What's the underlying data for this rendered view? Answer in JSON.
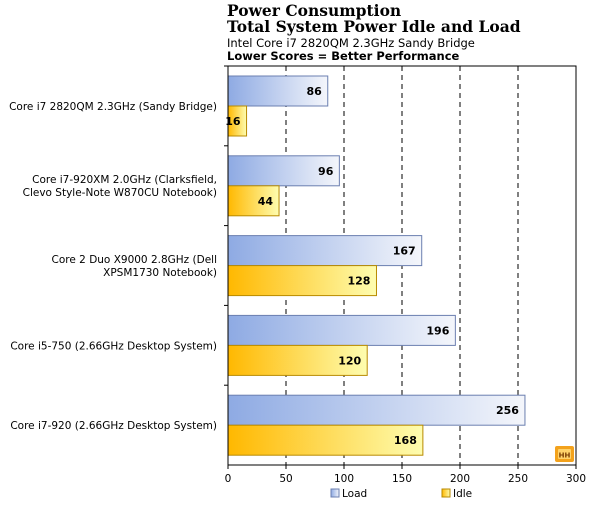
{
  "chart_data": {
    "type": "bar",
    "orientation": "horizontal",
    "title": "Power Consumption",
    "subtitle": "Total System Power Idle and Load",
    "subtitle2": "Intel Core i7 2820QM 2.3GHz Sandy Bridge",
    "note": "Lower Scores = Better Performance",
    "categories": [
      [
        "Core i7 2820QM 2.3GHz (Sandy Bridge)"
      ],
      [
        "Core i7-920XM 2.0GHz (Clarksfield,",
        "Clevo Style-Note W870CU Notebook)"
      ],
      [
        "Core 2 Duo X9000 2.8GHz (Dell",
        "XPSM1730 Notebook)"
      ],
      [
        "Core i5-750 (2.66GHz Desktop System)"
      ],
      [
        "Core i7-920 (2.66GHz Desktop System)"
      ]
    ],
    "series": [
      {
        "name": "Load",
        "values": [
          86,
          96,
          167,
          196,
          256
        ],
        "color_start": "#8eaae3",
        "color_end": "#f4f6fb"
      },
      {
        "name": "Idle",
        "values": [
          16,
          44,
          128,
          120,
          168
        ],
        "color_start": "#ffb800",
        "color_end": "#fefdb0"
      }
    ],
    "xlim": [
      0,
      300
    ],
    "xticks": [
      0,
      50,
      100,
      150,
      200,
      250,
      300
    ],
    "grid": true,
    "legend_position": "bottom"
  }
}
